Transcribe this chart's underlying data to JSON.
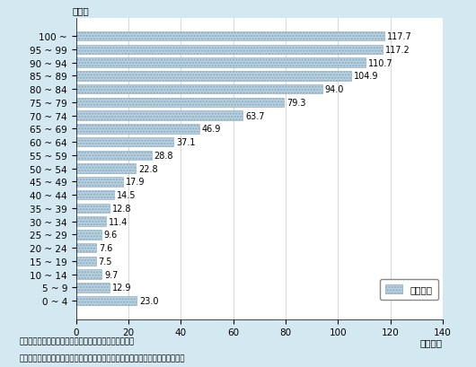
{
  "categories": [
    "100 ~",
    "95 ~ 99",
    "90 ~ 94",
    "85 ~ 89",
    "80 ~ 84",
    "75 ~ 79",
    "70 ~ 74",
    "65 ~ 69",
    "60 ~ 64",
    "55 ~ 59",
    "50 ~ 54",
    "45 ~ 49",
    "40 ~ 44",
    "35 ~ 39",
    "30 ~ 34",
    "25 ~ 29",
    "20 ~ 24",
    "15 ~ 19",
    "10 ~ 14",
    "5 ~ 9",
    "0 ~ 4"
  ],
  "values": [
    117.7,
    117.2,
    110.7,
    104.9,
    94.0,
    79.3,
    63.7,
    46.9,
    37.1,
    28.8,
    22.8,
    17.9,
    14.5,
    12.8,
    11.4,
    9.6,
    7.6,
    7.5,
    9.7,
    12.9,
    23.0
  ],
  "bar_color": "#b8d0e0",
  "bar_edge_color": "#8aacbf",
  "background_color": "#d4e8f2",
  "plot_bg_color": "#ffffff",
  "xlabel": "（万円）",
  "ylabel": "（歳）",
  "xlim": [
    0,
    140
  ],
  "xticks": [
    0,
    20,
    40,
    60,
    80,
    100,
    120,
    140
  ],
  "legend_label": "医療費計",
  "source_text": "出典：厕生労働省保険局「医療保険に関する基礎資料」",
  "note_text": "（注）医療費計とは、平成２７年４月～平成２８年３月診療分の医療費のこと。",
  "tick_fontsize": 7.5,
  "value_fontsize": 7.0,
  "label_fontsize": 7.5
}
